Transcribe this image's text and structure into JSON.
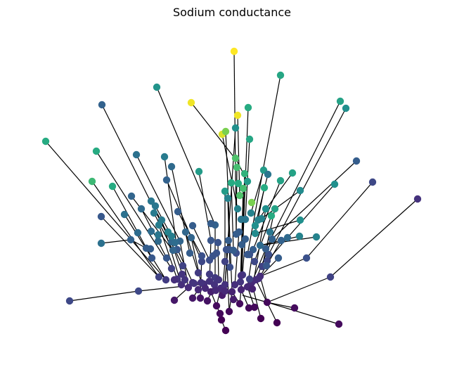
{
  "figure": {
    "title": "Sodium conductance"
  },
  "colormap": "viridis",
  "colors": {
    "low": "#440154",
    "mid": "#21918c",
    "high": "#fde725"
  }
}
